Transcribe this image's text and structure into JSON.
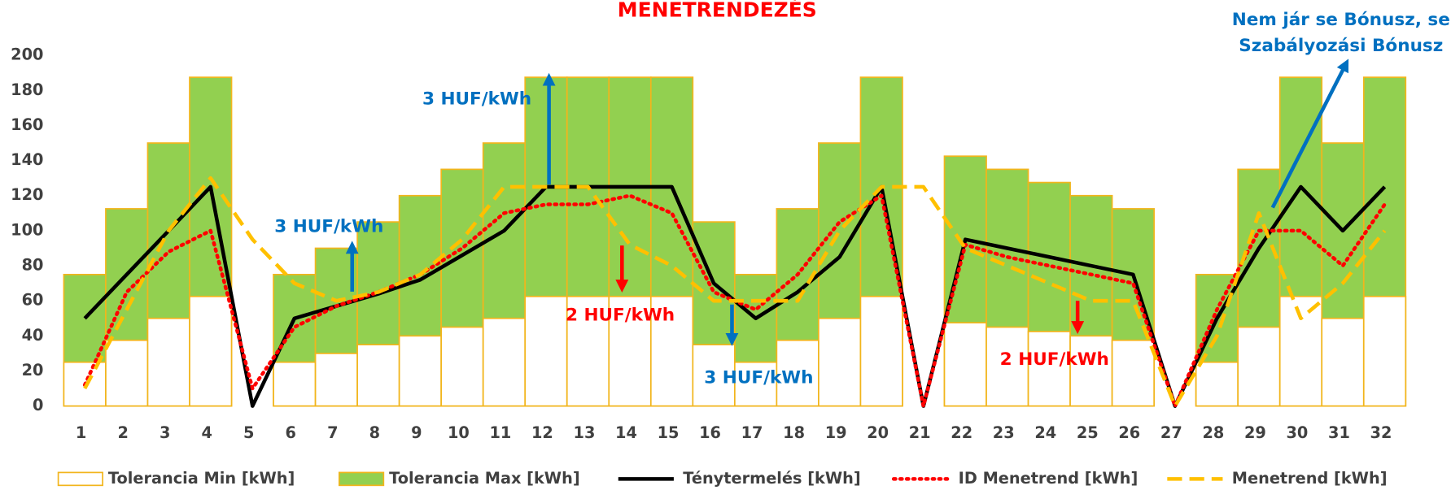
{
  "chart_data": {
    "type": "bar-line",
    "title": "MENETRENDEZÉS",
    "categories": [
      "1",
      "2",
      "3",
      "4",
      "5",
      "6",
      "7",
      "8",
      "9",
      "10",
      "11",
      "12",
      "13",
      "14",
      "15",
      "16",
      "17",
      "18",
      "19",
      "20",
      "21",
      "22",
      "23",
      "24",
      "25",
      "26",
      "27",
      "28",
      "29",
      "30",
      "31",
      "32"
    ],
    "series": [
      {
        "name": "Tolerancia Min [kWh]",
        "type": "bar",
        "color": "#ffffff",
        "edge": "#f2b51c",
        "values": [
          25,
          37.5,
          50,
          62.5,
          0,
          25,
          30,
          35,
          40,
          45,
          50,
          62.5,
          62.5,
          62.5,
          62.5,
          35,
          25,
          37.5,
          50,
          62.5,
          0,
          47.5,
          45,
          42.5,
          40,
          37.5,
          0,
          25,
          45,
          62.5,
          50,
          62.5
        ]
      },
      {
        "name": "Tolerancia Max [kWh]",
        "type": "bar",
        "color": "#92d050",
        "edge": "#f2b51c",
        "values": [
          75,
          112.5,
          150,
          187.5,
          0,
          75,
          90,
          105,
          120,
          135,
          150,
          187.5,
          187.5,
          187.5,
          187.5,
          105,
          75,
          112.5,
          150,
          187.5,
          0,
          142.5,
          135,
          127.5,
          120,
          112.5,
          0,
          75,
          135,
          187.5,
          150,
          187.5
        ]
      },
      {
        "name": "Ténytermelés [kWh]",
        "type": "line",
        "color": "#000000",
        "style": "solid",
        "values": [
          50,
          75,
          100,
          125,
          0,
          50,
          57,
          64,
          72,
          86,
          100,
          125,
          125,
          125,
          125,
          70,
          50,
          65,
          85,
          125,
          0,
          95,
          90,
          85,
          80,
          75,
          0,
          50,
          90,
          125,
          100,
          125
        ]
      },
      {
        "name": "ID Menetrend [kWh]",
        "type": "line",
        "color": "#ff0000",
        "style": "dotted",
        "values": [
          12,
          65,
          88,
          100,
          10,
          45,
          57,
          65,
          75,
          90,
          110,
          115,
          115,
          120,
          110,
          65,
          55,
          75,
          105,
          120,
          0,
          92,
          85,
          80,
          75,
          70,
          0,
          55,
          100,
          100,
          80,
          115
        ]
      },
      {
        "name": "Menetrend [kWh]",
        "type": "line",
        "color": "#ffc000",
        "style": "dashed",
        "values": [
          10,
          55,
          100,
          130,
          95,
          70,
          60,
          65,
          75,
          95,
          125,
          125,
          125,
          92,
          80,
          60,
          60,
          60,
          100,
          125,
          125,
          90,
          80,
          70,
          60,
          60,
          0,
          40,
          110,
          50,
          70,
          100
        ]
      }
    ],
    "ylim": [
      0,
      200
    ],
    "yticks": [
      0,
      20,
      40,
      60,
      80,
      100,
      120,
      140,
      160,
      180,
      200
    ],
    "grid": false,
    "legend": "bottom",
    "annotations": [
      {
        "text": "3 HUF/kWh",
        "color": "#0070c0"
      },
      {
        "text": "3 HUF/kWh",
        "color": "#0070c0"
      },
      {
        "text": "2 HUF/kWh",
        "color": "#ff0000"
      },
      {
        "text": "3 HUF/kWh",
        "color": "#0070c0"
      },
      {
        "text": "2 HUF/kWh",
        "color": "#ff0000"
      },
      {
        "text": "Nem jár se Bónusz, se",
        "color": "#0070c0"
      },
      {
        "text": "Szabályozási Bónusz",
        "color": "#0070c0"
      }
    ]
  }
}
